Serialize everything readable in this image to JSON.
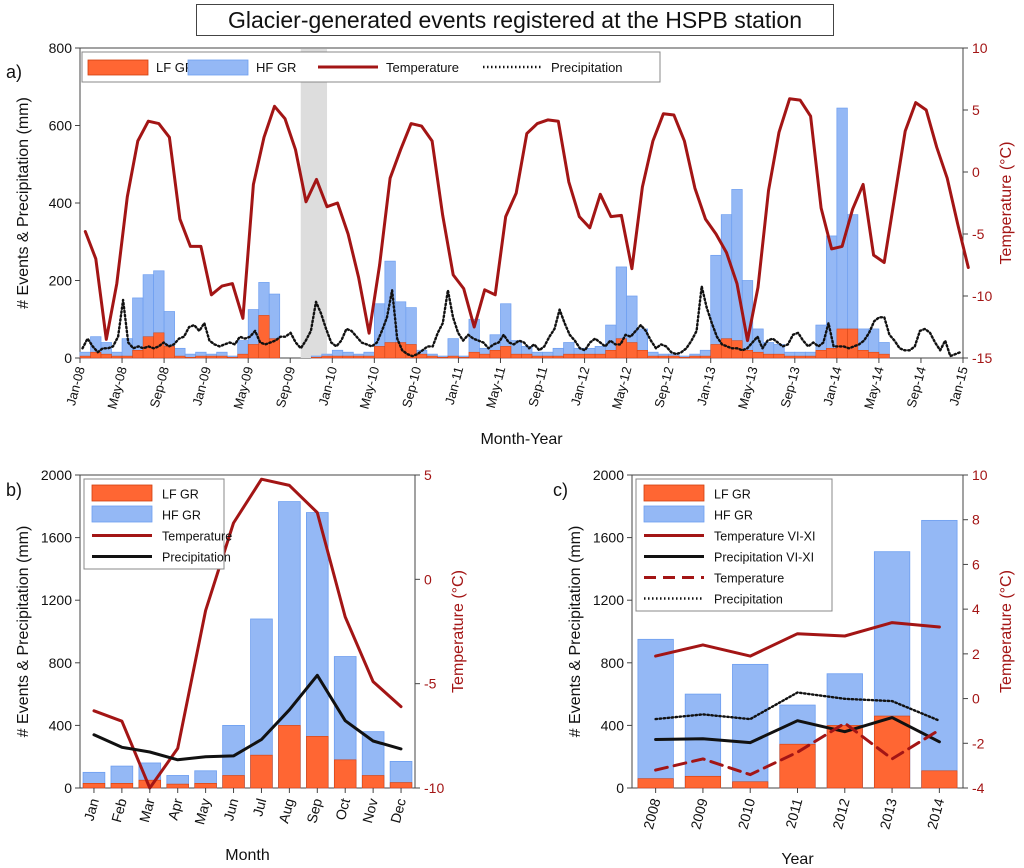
{
  "figure_title": "Glacier-generated events registered at the HSPB station",
  "colors": {
    "lf": "#ff6633",
    "hf": "#6d9ef0",
    "hf_fill": "#94b8f5",
    "temperature": "#a31515",
    "precipitation": "#111111",
    "shade": "#dddddd"
  },
  "chart_data": [
    {
      "id": "a",
      "panel_label": "a)",
      "type": "bar",
      "xlabel": "Month-Year",
      "ylabel": "# Events & Precipitation (mm)",
      "y2label": "Temperature (°C)",
      "ylim": [
        0,
        800
      ],
      "y2lim": [
        -15,
        10
      ],
      "yticks": [
        0,
        200,
        400,
        600,
        800
      ],
      "y2ticks": [
        -15,
        -10,
        -5,
        0,
        5,
        10
      ],
      "legend_placement": "top-left",
      "legend": [
        "LF GR",
        "HF GR",
        "Temperature",
        "Precipitation"
      ],
      "start_month": "Jan-08",
      "x_tick_labels": [
        "Jan-08",
        "May-08",
        "Sep-08",
        "Jan-09",
        "May-09",
        "Sep-09",
        "Jan-10",
        "May-10",
        "Sep-10",
        "Jan-11",
        "May-11",
        "Sep-11",
        "Jan-12",
        "May-12",
        "Sep-12",
        "Jan-13",
        "May-13",
        "Sep-13",
        "Jan-14",
        "May-14",
        "Sep-14",
        "Jan-15"
      ],
      "shaded_span": [
        "Oct-09",
        "Dec-09"
      ],
      "series": [
        {
          "name": "HF GR",
          "values": [
            15,
            55,
            40,
            15,
            50,
            155,
            215,
            225,
            120,
            25,
            10,
            15,
            10,
            15,
            5,
            45,
            125,
            195,
            165,
            0,
            0,
            0,
            5,
            10,
            20,
            15,
            10,
            15,
            140,
            250,
            145,
            130,
            20,
            10,
            5,
            50,
            5,
            100,
            25,
            60,
            140,
            45,
            30,
            15,
            15,
            25,
            40,
            25,
            25,
            30,
            85,
            235,
            160,
            75,
            15,
            10,
            10,
            5,
            10,
            20,
            265,
            370,
            435,
            200,
            75,
            40,
            35,
            15,
            15,
            15,
            85,
            315,
            645,
            370,
            75,
            75,
            40
          ]
        },
        {
          "name": "LF GR",
          "values": [
            5,
            15,
            10,
            5,
            5,
            20,
            55,
            65,
            30,
            5,
            2,
            5,
            5,
            5,
            2,
            10,
            35,
            110,
            50,
            0,
            0,
            0,
            2,
            5,
            5,
            5,
            5,
            5,
            30,
            40,
            40,
            35,
            10,
            5,
            2,
            5,
            2,
            15,
            10,
            20,
            30,
            10,
            10,
            5,
            5,
            5,
            10,
            10,
            10,
            10,
            20,
            50,
            40,
            20,
            5,
            5,
            5,
            2,
            5,
            5,
            35,
            50,
            45,
            20,
            15,
            10,
            10,
            5,
            5,
            5,
            20,
            25,
            75,
            75,
            20,
            15,
            10
          ]
        },
        {
          "name": "Temperature",
          "values": [
            -4.8,
            -7,
            -13.5,
            -9,
            -2,
            2.5,
            4.1,
            3.9,
            2.8,
            -3.8,
            -6,
            -6,
            -9.9,
            -9.2,
            -9,
            -11.8,
            -1,
            2.8,
            5.3,
            4.3,
            1.8,
            -2.4,
            -0.6,
            -2.8,
            -2.5,
            -5,
            -8.5,
            -13,
            -7.5,
            -0.5,
            1.8,
            3.9,
            3.7,
            2.5,
            -3.5,
            -8.3,
            -9.4,
            -12.5,
            -9.5,
            -9.9,
            -3.6,
            -1.7,
            3.1,
            3.9,
            4.2,
            4.1,
            -0.8,
            -3.6,
            -4.5,
            -1.8,
            -3.6,
            -3.5,
            -7.8,
            -1.2,
            2.5,
            4.7,
            4.6,
            2.5,
            -1.3,
            -3.8,
            -5,
            -6.5,
            -9,
            -13.6,
            -9.3,
            -1.5,
            3.2,
            5.9,
            5.8,
            4.5,
            -2.9,
            -6.2,
            -6,
            -3,
            -1,
            -6.7,
            -7.3,
            -2,
            3.3,
            5.6,
            5,
            2,
            -0.5,
            -4.2,
            -7.7
          ]
        },
        {
          "name": "Precipitation",
          "values": [
            25,
            50,
            30,
            15,
            25,
            25,
            30,
            55,
            150,
            40,
            25,
            30,
            25,
            30,
            25,
            30,
            40,
            30,
            35,
            50,
            55,
            80,
            85,
            70,
            90,
            45,
            35,
            30,
            35,
            40,
            35,
            55,
            50,
            55,
            70,
            40,
            35,
            40,
            45,
            55,
            55,
            65,
            40,
            25,
            45,
            70,
            145,
            115,
            75,
            40,
            30,
            45,
            75,
            70,
            55,
            40,
            35,
            30,
            40,
            70,
            105,
            175,
            50,
            20,
            10,
            5,
            10,
            20,
            30,
            30,
            65,
            90,
            175,
            105,
            65,
            45,
            60,
            50,
            45,
            40,
            25,
            35,
            40,
            60,
            40,
            35,
            45,
            40,
            25,
            35,
            20,
            30,
            55,
            75,
            125,
            90,
            60,
            45,
            25,
            20,
            40,
            50,
            40,
            30,
            45,
            35,
            35,
            60,
            55,
            70,
            85,
            70,
            45,
            25,
            35,
            30,
            15,
            10,
            15,
            25,
            45,
            70,
            185,
            130,
            90,
            55,
            35,
            30,
            25,
            25,
            20,
            25,
            40,
            55,
            25,
            45,
            50,
            40,
            30,
            35,
            60,
            65,
            45,
            30,
            40,
            30,
            40,
            90,
            30,
            30,
            30,
            25,
            30,
            35,
            45,
            65,
            95,
            105,
            105,
            60,
            45,
            25,
            20,
            20,
            30,
            70,
            75,
            65,
            40,
            20,
            45,
            5,
            10,
            15
          ]
        }
      ]
    },
    {
      "id": "b",
      "panel_label": "b)",
      "type": "bar",
      "xlabel": "Month",
      "ylabel": "# Events & Precipitation (mm)",
      "y2label": "Temperature (°C)",
      "ylim": [
        0,
        2000
      ],
      "y2lim": [
        -10,
        5
      ],
      "yticks": [
        0,
        400,
        800,
        1200,
        1600,
        2000
      ],
      "y2ticks": [
        -10,
        -5,
        0,
        5
      ],
      "legend_placement": "top-left",
      "legend": [
        "LF GR",
        "HF GR",
        "Temperature",
        "Precipitation"
      ],
      "categories": [
        "Jan",
        "Feb",
        "Mar",
        "Apr",
        "May",
        "Jun",
        "Jul",
        "Aug",
        "Sep",
        "Oct",
        "Nov",
        "Dec"
      ],
      "series": [
        {
          "name": "HF GR",
          "values": [
            100,
            140,
            160,
            80,
            110,
            400,
            1080,
            1830,
            1760,
            840,
            360,
            170
          ]
        },
        {
          "name": "LF GR",
          "values": [
            30,
            30,
            50,
            25,
            30,
            80,
            210,
            400,
            330,
            180,
            80,
            35
          ]
        },
        {
          "name": "Temperature",
          "values": [
            -6.3,
            -6.8,
            -10,
            -8.1,
            -1.5,
            2.7,
            4.8,
            4.5,
            3.2,
            -1.8,
            -4.9,
            -6.1
          ]
        },
        {
          "name": "Precipitation",
          "values": [
            340,
            260,
            230,
            180,
            200,
            205,
            310,
            500,
            720,
            430,
            300,
            250
          ]
        }
      ]
    },
    {
      "id": "c",
      "panel_label": "c)",
      "type": "bar",
      "xlabel": "Year",
      "ylabel": "# Events & Precipitation (mm)",
      "y2label": "Temperature (°C)",
      "ylim": [
        0,
        2000
      ],
      "y2lim": [
        -4,
        10
      ],
      "yticks": [
        0,
        400,
        800,
        1200,
        1600,
        2000
      ],
      "y2ticks": [
        -4,
        -2,
        0,
        2,
        4,
        6,
        8,
        10
      ],
      "legend_placement": "top-left",
      "legend": [
        "LF GR",
        "HF GR",
        "Temperature VI-XI",
        "Precipitation VI-XI",
        "Temperature",
        "Precipitation"
      ],
      "categories": [
        "2008",
        "2009",
        "2010",
        "2011",
        "2012",
        "2013",
        "2014"
      ],
      "series": [
        {
          "name": "HF GR",
          "values": [
            950,
            600,
            790,
            530,
            730,
            1510,
            1710
          ]
        },
        {
          "name": "LF GR",
          "values": [
            60,
            75,
            40,
            280,
            400,
            460,
            110
          ]
        },
        {
          "name": "Temperature VI-XI",
          "values": [
            1.9,
            2.4,
            1.9,
            2.9,
            2.8,
            3.4,
            3.2
          ]
        },
        {
          "name": "Precipitation VI-XI",
          "values": [
            310,
            315,
            290,
            430,
            360,
            450,
            295
          ]
        },
        {
          "name": "Temperature",
          "values": [
            -3.2,
            -2.7,
            -3.4,
            -2.4,
            -1.1,
            -2.7,
            -1.4
          ]
        },
        {
          "name": "Precipitation",
          "values": [
            440,
            470,
            440,
            610,
            570,
            555,
            430
          ]
        }
      ]
    }
  ]
}
